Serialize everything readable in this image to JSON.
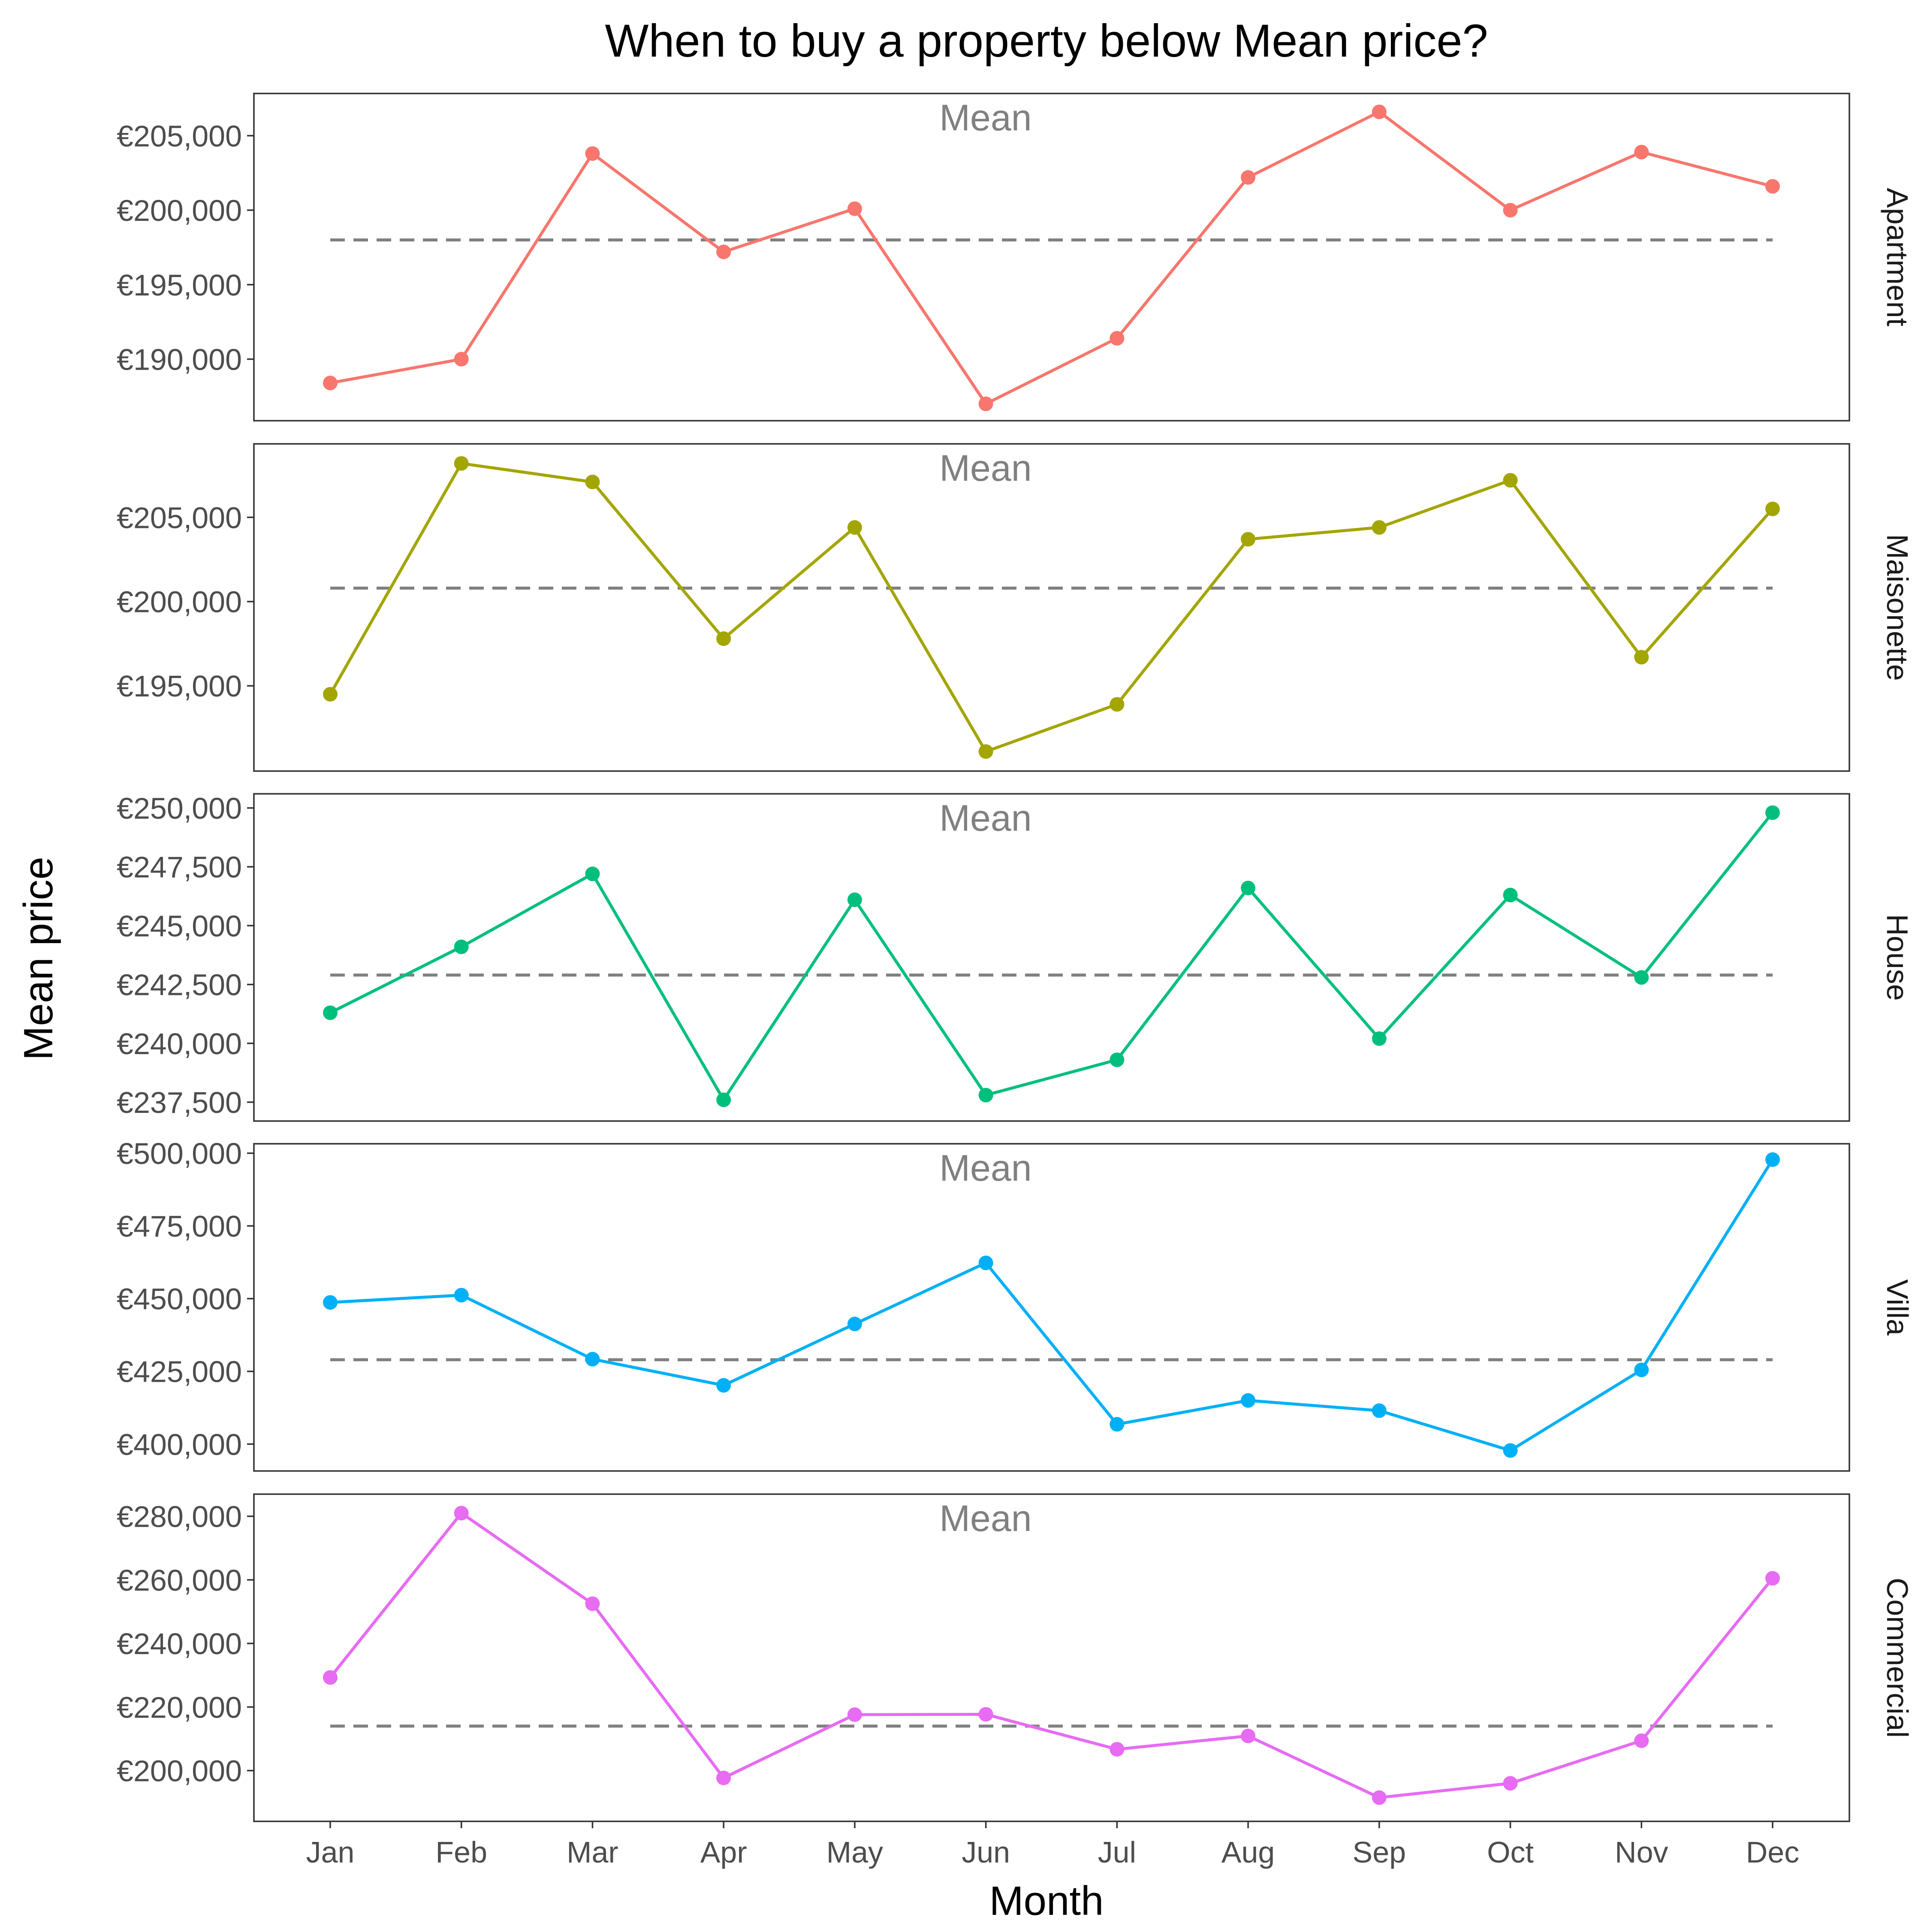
{
  "chart_data": {
    "type": "line",
    "title": "When to buy a property below Mean price?",
    "xlabel": "Month",
    "ylabel": "Mean price",
    "categories": [
      "Jan",
      "Feb",
      "Mar",
      "Apr",
      "May",
      "Jun",
      "Jul",
      "Aug",
      "Sep",
      "Oct",
      "Nov",
      "Dec"
    ],
    "mean_label": "Mean",
    "grid": false,
    "legend": "none",
    "facets": [
      {
        "name": "Apartment",
        "color": "#F8766D",
        "mean": 198000,
        "ylim": [
          186500,
          207200
        ],
        "yticks": [
          190000,
          195000,
          200000,
          205000
        ],
        "ytick_labels": [
          "€190,000",
          "€195,000",
          "€200,000",
          "€205,000"
        ],
        "values": [
          188400,
          190000,
          203800,
          197200,
          200100,
          187000,
          191400,
          202200,
          206600,
          200000,
          203900,
          201600
        ]
      },
      {
        "name": "Maisonette",
        "color": "#A3A500",
        "mean": 200800,
        "ylim": [
          190500,
          208800
        ],
        "yticks": [
          195000,
          200000,
          205000
        ],
        "ytick_labels": [
          "€195,000",
          "€200,000",
          "€205,000"
        ],
        "values": [
          194500,
          208200,
          207100,
          197800,
          204400,
          191100,
          193900,
          203700,
          204400,
          207200,
          196700,
          205500
        ]
      },
      {
        "name": "House",
        "color": "#00BF7D",
        "mean": 242900,
        "ylim": [
          237100,
          250200
        ],
        "yticks": [
          237500,
          240000,
          242500,
          245000,
          247500,
          250000
        ],
        "ytick_labels": [
          "€237,500",
          "€240,000",
          "€242,500",
          "€245,000",
          "€247,500",
          "€250,000"
        ],
        "values": [
          241300,
          244100,
          247200,
          237600,
          246100,
          237800,
          239300,
          246600,
          240200,
          246300,
          242800,
          249800
        ]
      },
      {
        "name": "Villa",
        "color": "#00B0F6",
        "mean": 429000,
        "ylim": [
          394000,
          500000
        ],
        "yticks": [
          400000,
          425000,
          450000,
          475000,
          500000
        ],
        "ytick_labels": [
          "€400,000",
          "€425,000",
          "€450,000",
          "€475,000",
          "€500,000"
        ],
        "values": [
          448700,
          451200,
          429200,
          420200,
          441300,
          462300,
          406800,
          415000,
          411500,
          397800,
          425500,
          497800
        ]
      },
      {
        "name": "Commercial",
        "color": "#E76BF3",
        "mean": 214000,
        "ylim": [
          187000,
          284000
        ],
        "yticks": [
          200000,
          220000,
          240000,
          260000,
          280000
        ],
        "ytick_labels": [
          "€200,000",
          "€220,000",
          "€240,000",
          "€260,000",
          "€280,000"
        ],
        "values": [
          229300,
          281000,
          252500,
          197700,
          217600,
          217700,
          206700,
          210900,
          191500,
          196000,
          209400,
          260500
        ]
      }
    ]
  }
}
